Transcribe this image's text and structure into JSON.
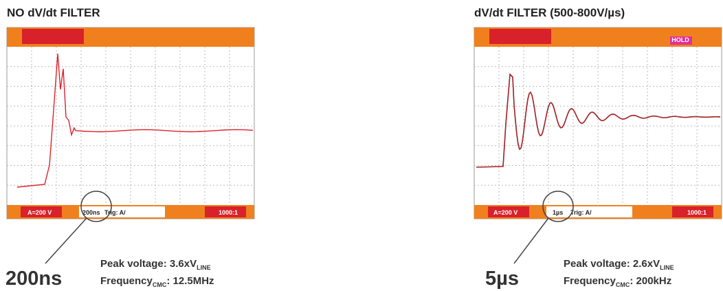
{
  "panels": [
    {
      "title": "NO dV/dt FILTER",
      "scope": {
        "channel": "A=200 V",
        "timebase": "200ns",
        "trigger": "Trig: A/",
        "ratio": "1000:1"
      },
      "callout": "200ns",
      "peak": {
        "label": "Peak voltage: 3.6xV",
        "sub": "LINE"
      },
      "frequency": {
        "label": "Frequency",
        "sub": "CMC",
        "value": ": 12.5MHz"
      }
    },
    {
      "title": "dV/dt FILTER (500-800V/µs)",
      "scope": {
        "status": "HOLD",
        "channel": "A=200 V",
        "timebase": "1µs",
        "trigger": "Trig: A/",
        "ratio": "1000:1"
      },
      "callout": "5µs",
      "peak": {
        "label": "Peak voltage: 2.6xV",
        "sub": "LINE"
      },
      "frequency": {
        "label": "Frequency",
        "sub": "CMC",
        "value": ": 200kHz"
      }
    }
  ]
}
